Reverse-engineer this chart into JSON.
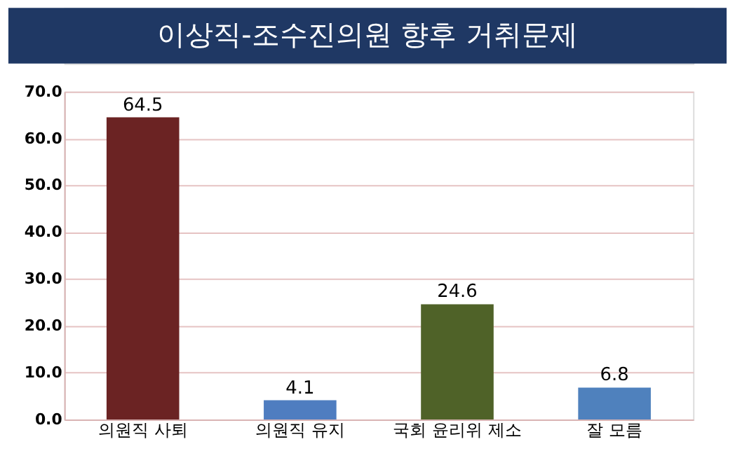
{
  "chart_data": {
    "type": "bar",
    "title": "이상직-조수진의원 향후 거취문제",
    "categories": [
      "의원직 사퇴",
      "의원직 유지",
      "국회 윤리위 제소",
      "잘 모름"
    ],
    "values": [
      64.5,
      4.1,
      24.6,
      6.8
    ],
    "colors": [
      "#6b2323",
      "#4f7dc0",
      "#4f6228",
      "#4f81bd"
    ],
    "ylim": [
      0,
      70
    ],
    "yticks": [
      {
        "value": 0,
        "label": "0.0"
      },
      {
        "value": 10,
        "label": "10.0"
      },
      {
        "value": 20,
        "label": "20.0"
      },
      {
        "value": 30,
        "label": "30.0"
      },
      {
        "value": 40,
        "label": "40.0"
      },
      {
        "value": 50,
        "label": "50.0"
      },
      {
        "value": 60,
        "label": "60.0"
      },
      {
        "value": 70,
        "label": "70.0"
      }
    ],
    "grid": "y",
    "data_labels": true
  }
}
